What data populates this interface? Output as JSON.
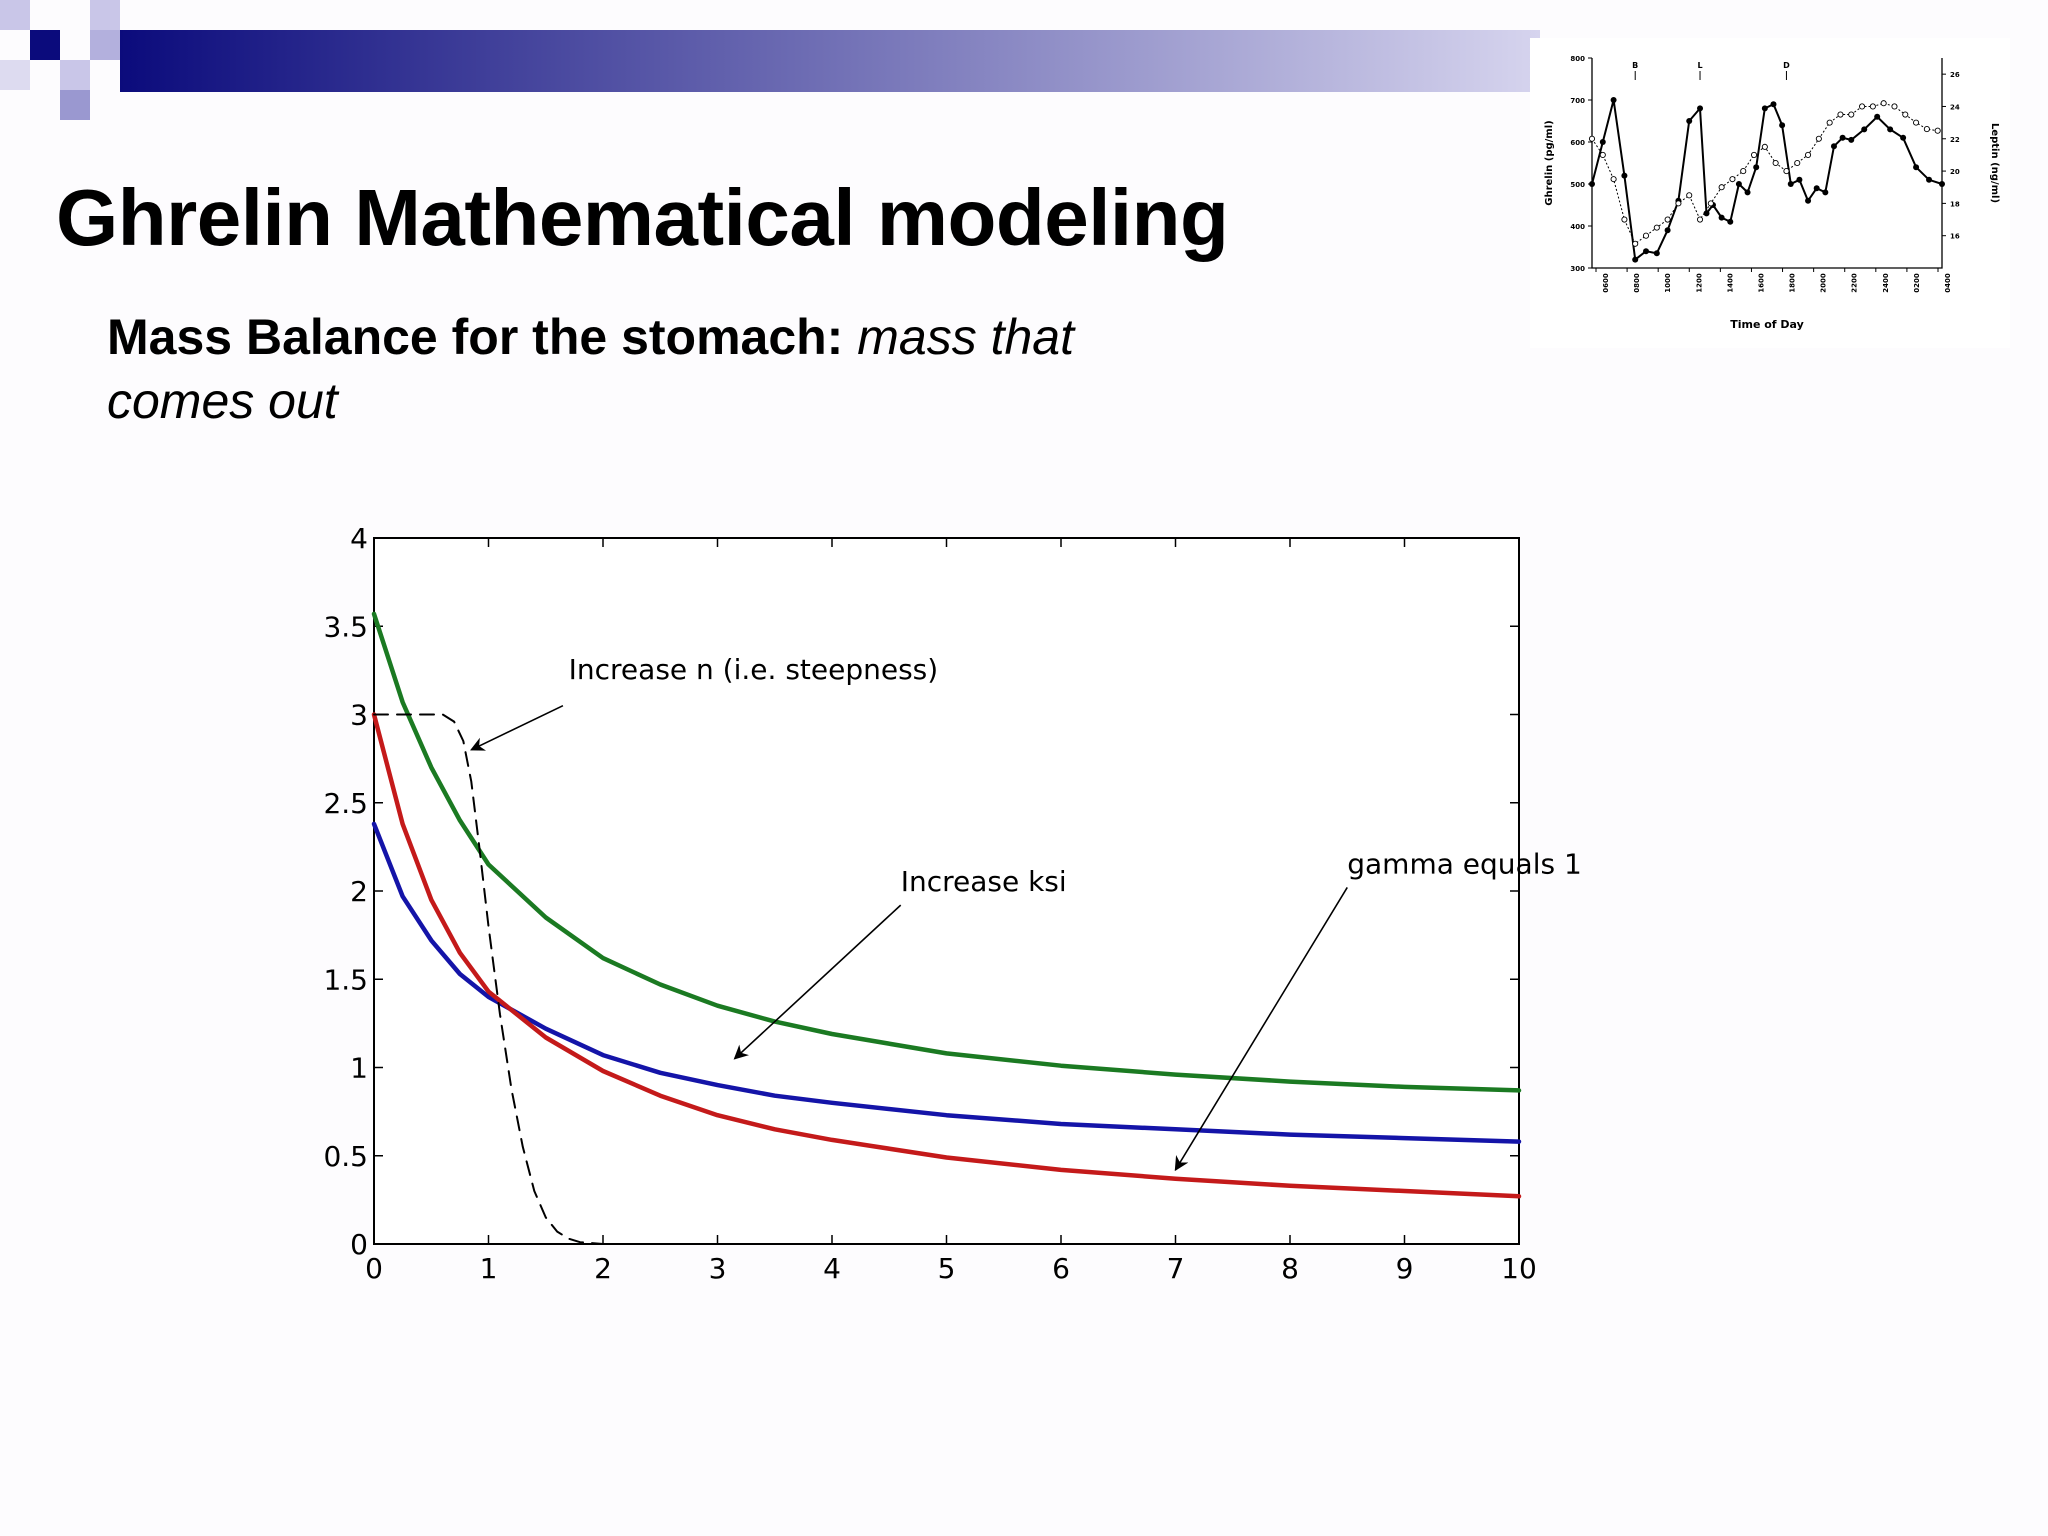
{
  "slide": {
    "title": "Ghrelin Mathematical modeling",
    "subtitle_bold": "Mass Balance for the stomach:",
    "subtitle_italic": "mass that comes out",
    "banner_colors": {
      "dark": "#0b0b7c",
      "light": "#c9c6e8",
      "square_light": "#9a98d0"
    }
  },
  "chart_data": [
    {
      "type": "line",
      "title": "",
      "xlabel": "",
      "ylabel": "",
      "xlim": [
        0,
        10
      ],
      "ylim": [
        0,
        4
      ],
      "x_ticks": [
        "0",
        "1",
        "2",
        "3",
        "4",
        "5",
        "6",
        "7",
        "8",
        "9",
        "10"
      ],
      "y_ticks": [
        "0",
        "0.5",
        "1",
        "1.5",
        "2",
        "2.5",
        "3",
        "3.5",
        "4"
      ],
      "grid": false,
      "series": [
        {
          "color": "#1b7a22",
          "style": "solid",
          "x": [
            0,
            0.25,
            0.5,
            0.75,
            1,
            1.5,
            2,
            2.5,
            3,
            3.5,
            4,
            5,
            6,
            7,
            8,
            9,
            10
          ],
          "y": [
            3.57,
            3.07,
            2.7,
            2.4,
            2.15,
            1.85,
            1.62,
            1.47,
            1.35,
            1.26,
            1.19,
            1.08,
            1.01,
            0.96,
            0.92,
            0.89,
            0.87
          ]
        },
        {
          "color": "#1414a8",
          "style": "solid",
          "x": [
            0,
            0.25,
            0.5,
            0.75,
            1,
            1.5,
            2,
            2.5,
            3,
            3.5,
            4,
            5,
            6,
            7,
            8,
            9,
            10
          ],
          "y": [
            2.38,
            1.97,
            1.72,
            1.53,
            1.4,
            1.22,
            1.07,
            0.97,
            0.9,
            0.84,
            0.8,
            0.73,
            0.68,
            0.65,
            0.62,
            0.6,
            0.58
          ]
        },
        {
          "color": "#c41a1a",
          "style": "solid",
          "x": [
            0,
            0.25,
            0.5,
            0.75,
            1,
            1.5,
            2,
            2.5,
            3,
            3.5,
            4,
            5,
            6,
            7,
            8,
            9,
            10
          ],
          "y": [
            3.0,
            2.38,
            1.95,
            1.65,
            1.43,
            1.17,
            0.98,
            0.84,
            0.73,
            0.65,
            0.59,
            0.49,
            0.42,
            0.37,
            0.33,
            0.3,
            0.27
          ]
        },
        {
          "color": "#000000",
          "style": "dashed",
          "x": [
            0,
            0.6,
            0.7,
            0.78,
            0.85,
            0.92,
            1.0,
            1.1,
            1.2,
            1.3,
            1.4,
            1.5,
            1.6,
            1.7,
            1.8,
            2.0,
            10
          ],
          "y": [
            3.0,
            3.0,
            2.96,
            2.85,
            2.62,
            2.25,
            1.8,
            1.3,
            0.88,
            0.55,
            0.3,
            0.15,
            0.07,
            0.03,
            0.01,
            0.0,
            0.0
          ]
        }
      ],
      "annotations": [
        {
          "text": "Increase n (i.e. steepness)",
          "text_at": [
            1.7,
            3.2
          ],
          "arrow_from": [
            1.65,
            3.05
          ],
          "arrow_to": [
            0.85,
            2.8
          ]
        },
        {
          "text": "Increase ksi",
          "text_at": [
            4.6,
            2.0
          ],
          "arrow_from": [
            4.6,
            1.92
          ],
          "arrow_to": [
            3.15,
            1.05
          ]
        },
        {
          "text": "gamma equals 1",
          "text_at": [
            8.5,
            2.1
          ],
          "arrow_from": [
            8.5,
            2.02
          ],
          "arrow_to": [
            7.0,
            0.42
          ]
        }
      ]
    },
    {
      "type": "line",
      "title": "",
      "xlabel": "Time of Day",
      "ylabel": "Ghrelin (pg/ml)",
      "y2label": "Leptin (ng/ml)",
      "ylim": [
        300,
        800
      ],
      "y2lim": [
        14,
        27
      ],
      "y_ticks": [
        "300",
        "400",
        "500",
        "600",
        "700",
        "800"
      ],
      "y2_ticks": [
        "16",
        "18",
        "20",
        "22",
        "24",
        "26"
      ],
      "x_ticks": [
        "0600",
        "0800",
        "1000",
        "1200",
        "1400",
        "1600",
        "1800",
        "2000",
        "2200",
        "2400",
        "0200",
        "0400"
      ],
      "meal_markers": [
        "B",
        "L",
        "D"
      ],
      "meal_marker_x": [
        2,
        5,
        9
      ],
      "series": [
        {
          "name": "",
          "style": "solid-filled",
          "x": [
            0,
            0.5,
            1,
            1.5,
            2,
            2.5,
            3,
            3.5,
            4,
            4.5,
            5,
            5.3,
            5.6,
            6,
            6.4,
            6.8,
            7.2,
            7.6,
            8,
            8.4,
            8.8,
            9.2,
            9.6,
            10,
            10.4,
            10.8,
            11.2,
            11.6,
            12,
            12.6,
            13.2,
            13.8,
            14.4,
            15.0,
            15.6,
            16.2
          ],
          "y": [
            500,
            600,
            700,
            520,
            320,
            340,
            335,
            390,
            460,
            650,
            680,
            430,
            450,
            420,
            410,
            500,
            480,
            540,
            680,
            690,
            640,
            500,
            510,
            460,
            490,
            480,
            590,
            610,
            605,
            630,
            660,
            630,
            610,
            540,
            510,
            500
          ]
        },
        {
          "name": "",
          "style": "dotted-open",
          "x": [
            0,
            0.5,
            1,
            1.5,
            2,
            2.5,
            3,
            3.5,
            4,
            4.5,
            5,
            5.5,
            6,
            6.5,
            7,
            7.5,
            8,
            8.5,
            9,
            9.5,
            10,
            10.5,
            11,
            11.5,
            12,
            12.5,
            13,
            13.5,
            14,
            14.5,
            15,
            15.5,
            16
          ],
          "y": [
            22,
            21,
            19.5,
            17,
            15.5,
            16,
            16.5,
            17,
            18,
            18.5,
            17,
            18,
            19,
            19.5,
            20,
            21,
            21.5,
            20.5,
            20,
            20.5,
            21,
            22,
            23,
            23.5,
            23.5,
            24,
            24,
            24.2,
            24,
            23.5,
            23,
            22.6,
            22.5
          ]
        }
      ]
    }
  ]
}
